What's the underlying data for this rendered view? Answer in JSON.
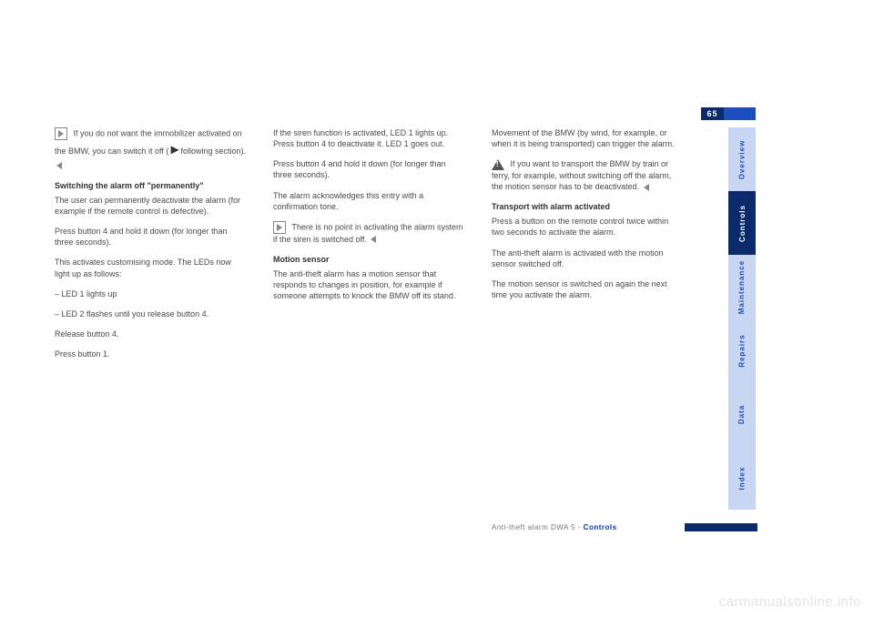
{
  "page_number": "65",
  "col1": {
    "hint1_a": "If you do not want the immobilizer activated on",
    "hint1_b": "the BMW, you can switch it off (",
    "hint1_c": "following section).",
    "head1": "Switching the alarm off \"permanently\"",
    "p1": "The user can permanently deactivate the alarm (for example if the remote control is defective).",
    "p2": "Press button 4 and hold it down (for longer than three seconds).",
    "p3": "This activates customising mode. The LEDs now light up as follows:",
    "li1": "– LED 1 lights up",
    "li2": "– LED 2 flashes until you release button 4.",
    "p4": "Release button 4.",
    "p5": "Press button 1."
  },
  "col2": {
    "p1": "If the siren function is activated, LED 1 lights up. Press button 4 to deactivate it. LED 1 goes out.",
    "p2": "Press button 4 and hold it down (for longer than three seconds).",
    "p3": "The alarm acknowledges this entry with a confirmation tone.",
    "hint_a": "There is no point in activating",
    "hint_b": "the alarm system if the siren is switched off.",
    "head1": "Motion sensor",
    "p4": "The anti-theft alarm has a motion sensor that responds to changes in position, for example if someone attempts to knock the BMW off its stand."
  },
  "col3": {
    "p1": "Movement of the BMW (by wind, for example, or when it is being transported) can trigger the alarm.",
    "warn_a": "If you want to transport the",
    "warn_b": "BMW by train or ferry, for example, without switching off the alarm, the motion sensor has to be deactivated.",
    "head1": "Transport with alarm activated",
    "p2": "Press a button on the remote control twice within two seconds to activate the alarm.",
    "p3": "The anti-theft alarm is activated with the motion sensor switched off.",
    "p4": "The motion sensor is switched on again the next time you activate the alarm."
  },
  "tabs": [
    "Overview",
    "Controls",
    "Maintenance",
    "Repairs",
    "Data",
    "Index"
  ],
  "tabs_active_index": 1,
  "footer_grey": "Anti-theft alarm DWA 5 - ",
  "footer_blue": "Controls",
  "watermark": "carmanualsonline.info",
  "colors": {
    "tab_light_bg": "#c9d6f2",
    "tab_dark_bg": "#0a2a6b",
    "accent": "#1d4ec0"
  }
}
